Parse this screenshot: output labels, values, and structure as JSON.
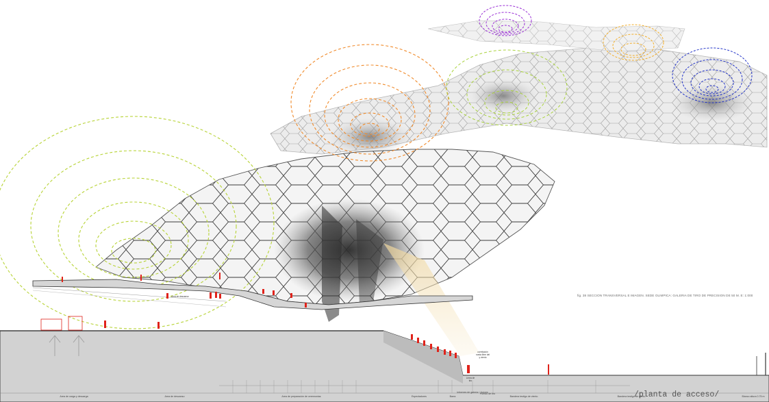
{
  "drawing": {
    "caption": "fig. 38 SECCION TRANSVERSAL E IMAGEN. SEDE OLIMPICA: GALERIA DE TIRO DE PRECISION DE 50 M. E: 1:000",
    "access_label": "/planta de acceso/",
    "area_label": "Area de descanso",
    "annotation": "correlación rueda libre del y viento",
    "line_label": "Línea de tiro",
    "zones": [
      "Area de carga y descarga",
      "Area de descanso",
      "Area de preparación de ceremonias",
      "Espectadores",
      "Barra",
      "Informes de galería / Jueces",
      "Puesto de tiro",
      "Bandera testigo de viento",
      "Bandera testigo de viento",
      "Blanco altura 0.75 m"
    ],
    "ripple_colors": {
      "green": "#b7d335",
      "orange": "#f08a2a",
      "purple": "#9a2fd6",
      "yellow": "#f2ae2a",
      "blue": "#2233c8",
      "light_green": "#a9d23c",
      "figures": "#e0231b"
    }
  }
}
